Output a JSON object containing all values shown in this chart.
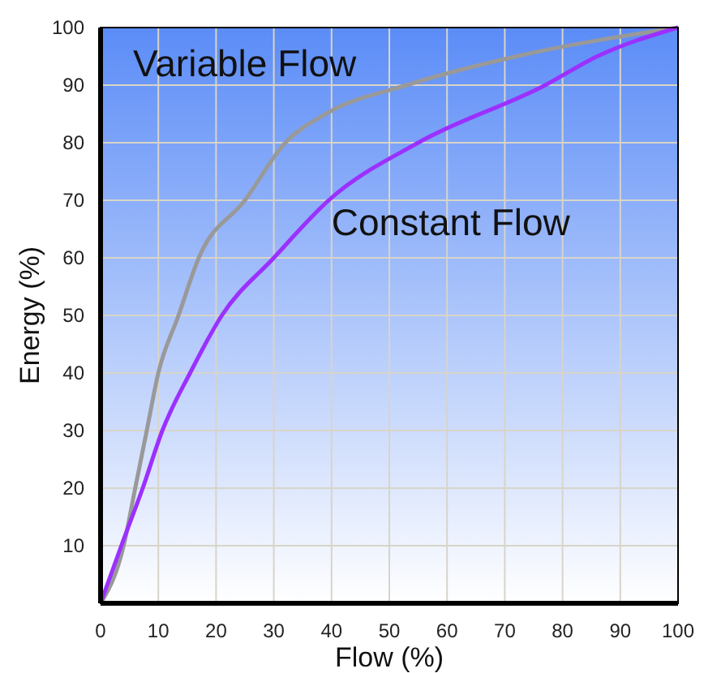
{
  "chart_data": {
    "type": "line",
    "xlabel": "Flow (%)",
    "ylabel": "Energy (%)",
    "xlim": [
      0,
      100
    ],
    "ylim": [
      0,
      100
    ],
    "xticks": [
      0,
      10,
      20,
      30,
      40,
      50,
      60,
      70,
      80,
      90,
      100
    ],
    "yticks": [
      10,
      20,
      30,
      40,
      50,
      60,
      70,
      80,
      90,
      100
    ],
    "grid": true,
    "legend": false,
    "series": [
      {
        "name": "Variable Flow",
        "color": "#999999",
        "x": [
          0,
          4,
          6,
          8,
          10,
          13.5,
          17,
          25,
          32,
          39,
          53,
          72,
          100
        ],
        "values": [
          0,
          10,
          20,
          30,
          40,
          50,
          60,
          70,
          80,
          85,
          90,
          95,
          100
        ]
      },
      {
        "name": "Constant Flow",
        "color": "#9b30ff",
        "x": [
          0,
          3.6,
          7.3,
          10.7,
          15.5,
          21,
          30,
          39.5,
          55,
          77,
          86,
          100
        ],
        "values": [
          0,
          10,
          20,
          30,
          40,
          50,
          60,
          70,
          80,
          90,
          95,
          100
        ]
      }
    ]
  }
}
